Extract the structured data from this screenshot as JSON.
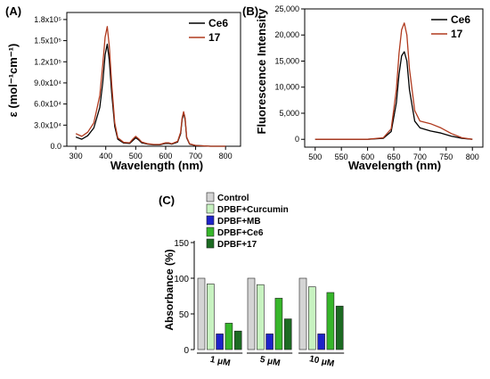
{
  "chart_data": [
    {
      "panel_label": "(A)",
      "type": "line",
      "xlabel": "Wavelength (nm)",
      "ylabel": "ε (mol⁻¹cm⁻¹)",
      "xlim": [
        270,
        850
      ],
      "ylim": [
        0,
        190000
      ],
      "x_ticks": [
        300,
        400,
        500,
        600,
        700,
        800
      ],
      "x_tick_labels": [
        "300",
        "400",
        "500",
        "600",
        "700",
        "800"
      ],
      "y_ticks": [
        0,
        30000,
        60000,
        90000,
        120000,
        150000,
        180000
      ],
      "y_tick_labels": [
        "0.0",
        "3.0x10⁴",
        "6.0x10⁴",
        "9.0x10⁴",
        "1.2x10⁵",
        "1.5x10⁵",
        "1.8x10⁵"
      ],
      "legend_position": "top-right",
      "series": [
        {
          "name": "Ce6",
          "color": "#000000",
          "x": [
            300,
            320,
            340,
            360,
            380,
            390,
            398,
            405,
            412,
            420,
            430,
            440,
            460,
            480,
            490,
            500,
            510,
            520,
            540,
            560,
            580,
            600,
            610,
            620,
            640,
            650,
            655,
            660,
            665,
            670,
            680,
            700,
            750,
            800
          ],
          "y": [
            13000,
            10000,
            15000,
            26000,
            55000,
            90000,
            130000,
            145000,
            122000,
            75000,
            28000,
            10000,
            4500,
            4000,
            8000,
            12000,
            9000,
            5000,
            3000,
            2000,
            2000,
            4000,
            4000,
            3000,
            6000,
            18000,
            38000,
            47000,
            38000,
            12000,
            3000,
            1000,
            0,
            0
          ]
        },
        {
          "name": "17",
          "color": "#b03a1e",
          "x": [
            300,
            320,
            340,
            360,
            380,
            390,
            398,
            405,
            412,
            420,
            430,
            440,
            460,
            480,
            490,
            500,
            510,
            520,
            540,
            560,
            580,
            600,
            610,
            620,
            640,
            650,
            655,
            660,
            665,
            670,
            680,
            700,
            750,
            800
          ],
          "y": [
            18000,
            14000,
            20000,
            33000,
            72000,
            115000,
            155000,
            170000,
            142000,
            88000,
            33000,
            12000,
            5500,
            5000,
            10000,
            14000,
            10500,
            6000,
            3500,
            2500,
            2500,
            5000,
            5000,
            3500,
            7000,
            20000,
            40000,
            49000,
            40000,
            13000,
            3500,
            1200,
            0,
            0
          ]
        }
      ]
    },
    {
      "panel_label": "(B)",
      "type": "line",
      "xlabel": "Wavelength (nm)",
      "ylabel": "Fluorescence Intensity",
      "xlim": [
        480,
        820
      ],
      "ylim": [
        -1500,
        25000
      ],
      "x_ticks": [
        500,
        550,
        600,
        650,
        700,
        750,
        800
      ],
      "x_tick_labels": [
        "500",
        "550",
        "600",
        "650",
        "700",
        "750",
        "800"
      ],
      "y_ticks": [
        0,
        5000,
        10000,
        15000,
        20000,
        25000
      ],
      "y_tick_labels": [
        "0",
        "5,000",
        "10,000",
        "15,000",
        "20,000",
        "25,000"
      ],
      "legend_position": "top-right",
      "series": [
        {
          "name": "Ce6",
          "color": "#000000",
          "x": [
            500,
            550,
            600,
            630,
            645,
            655,
            660,
            665,
            670,
            675,
            680,
            690,
            700,
            720,
            740,
            760,
            780,
            800
          ],
          "y": [
            0,
            0,
            0,
            200,
            1500,
            7000,
            12500,
            16000,
            16800,
            15000,
            9500,
            3500,
            2200,
            1600,
            1200,
            600,
            200,
            0
          ]
        },
        {
          "name": "17",
          "color": "#b03a1e",
          "x": [
            500,
            550,
            600,
            630,
            645,
            655,
            660,
            665,
            670,
            675,
            680,
            690,
            700,
            720,
            740,
            760,
            780,
            800
          ],
          "y": [
            0,
            0,
            0,
            300,
            2000,
            9500,
            16500,
            21000,
            22300,
            20000,
            13500,
            5500,
            3500,
            3000,
            2200,
            1100,
            300,
            0
          ]
        }
      ]
    },
    {
      "panel_label": "(C)",
      "type": "bar",
      "ylabel": "Absorbance (%)",
      "ylim": [
        0,
        150
      ],
      "y_ticks": [
        0,
        50,
        100,
        150
      ],
      "y_tick_labels": [
        "0",
        "50",
        "100",
        "150"
      ],
      "categories": [
        "1 μM",
        "5 μM",
        "10 μM"
      ],
      "legend_position": "top-left",
      "series": [
        {
          "name": "Control",
          "color": "#d4d4d4",
          "values": [
            100,
            100,
            100
          ]
        },
        {
          "name": "DPBF+Curcumin",
          "color": "#c7f2c0",
          "values": [
            92,
            91,
            88
          ]
        },
        {
          "name": "DPBF+MB",
          "color": "#1e23c8",
          "values": [
            22,
            22,
            22
          ]
        },
        {
          "name": "DPBF+Ce6",
          "color": "#36b62a",
          "values": [
            37,
            72,
            80
          ]
        },
        {
          "name": "DPBF+17",
          "color": "#1c6b22",
          "values": [
            26,
            43,
            61
          ]
        }
      ]
    }
  ]
}
